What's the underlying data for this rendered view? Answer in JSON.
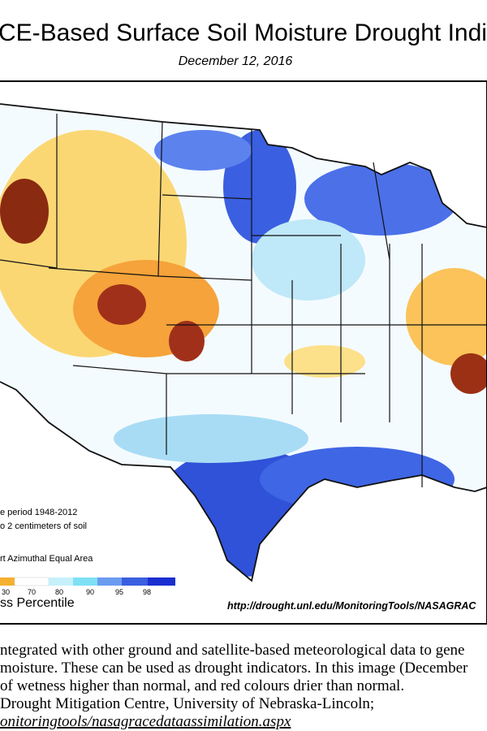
{
  "header": {
    "title": "CE-Based Surface Soil  Moisture Drought Indic",
    "date": "December 12, 2016"
  },
  "legend": {
    "notes": [
      "e period 1948-2012",
      "o 2 centimeters of soil",
      "rt Azimuthal Equal Area"
    ],
    "ticks": [
      "30",
      "70",
      "80",
      "90",
      "95",
      "98"
    ],
    "label": "ss Percentile"
  },
  "source_url": "http://drought.unl.edu/MonitoringTools/NASAGRAC",
  "caption": {
    "lines": [
      "ntegrated with other ground and satellite-based meteorological data to gene",
      "moisture.  These can be used as drought indicators.  In this image (December",
      "of wetness higher than normal, and red colours drier than normal.",
      "Drought Mitigation Centre, University of Nebraska-Lincoln;"
    ],
    "link": "onitoringtools/nasagracedataassimilation.aspx"
  }
}
